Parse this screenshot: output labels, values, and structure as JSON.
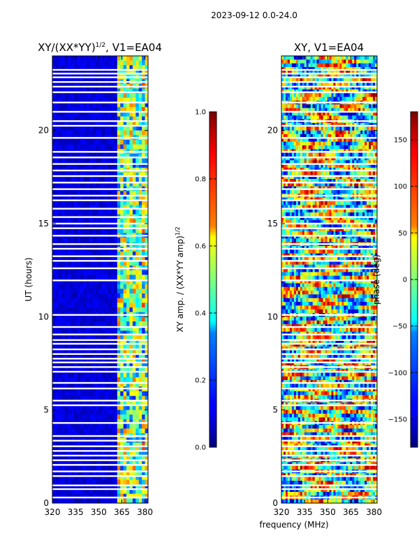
{
  "suptitle": "2023-09-12 0.0-24.0",
  "xlabel_shared": "frequency (MHz)",
  "chart_data": [
    {
      "type": "heatmap",
      "title_main": "XY/(XX*YY)",
      "title_sup": "1/2",
      "title_rest": ", V1=EA04",
      "ylabel": "UT (hours)",
      "x_ticks": [
        320,
        335,
        350,
        365,
        380
      ],
      "xlim": [
        320,
        382
      ],
      "y_ticks": [
        0,
        5,
        10,
        15,
        20
      ],
      "ylim": [
        0,
        24
      ],
      "colorbar": {
        "label_main": "XY amp. / (XX*YY amp)",
        "label_sup": "1/2",
        "range": [
          0.0,
          1.0
        ],
        "ticks": [
          "0.0",
          "0.2",
          "0.4",
          "0.6",
          "0.8",
          "1.0"
        ],
        "colormap": "jet"
      },
      "description_values": {
        "baseline_amp": 0.05,
        "rfi_band_mhz": [
          363,
          382
        ],
        "rfi_amp_range": [
          0.3,
          0.85
        ]
      }
    },
    {
      "type": "heatmap",
      "title": "XY, V1=EA04",
      "x_ticks": [
        320,
        335,
        350,
        365,
        380
      ],
      "xlim": [
        320,
        382
      ],
      "y_ticks": [
        0,
        5,
        10,
        15,
        20
      ],
      "ylim": [
        0,
        24
      ],
      "colorbar": {
        "label": "phase (deg)",
        "range": [
          -180,
          180
        ],
        "ticks": [
          "150",
          "100",
          "50",
          "0",
          "−50",
          "−100",
          "−150"
        ],
        "tick_values": [
          150,
          100,
          50,
          0,
          -50,
          -100,
          -150
        ],
        "colormap": "jet"
      }
    }
  ],
  "flagged_hours": [
    0.3,
    0.75,
    0.95,
    1.45,
    1.7,
    2.05,
    2.3,
    2.55,
    2.8,
    3.05,
    3.35,
    3.6,
    4.3,
    5.25,
    5.5,
    6.15,
    6.45,
    7.05,
    7.3,
    7.55,
    7.75,
    8.0,
    8.25,
    8.55,
    8.75,
    9.05,
    9.45,
    10.1,
    11.95,
    12.6,
    13.0,
    13.25,
    13.65,
    13.9,
    14.35,
    14.75,
    15.0,
    15.35,
    15.8,
    16.25,
    16.5,
    16.85,
    17.2,
    17.55,
    17.85,
    18.2,
    18.55,
    18.85,
    19.6,
    20.25,
    20.5,
    21.0,
    21.5,
    22.05,
    22.35,
    22.6,
    22.85,
    23.05,
    23.25
  ]
}
